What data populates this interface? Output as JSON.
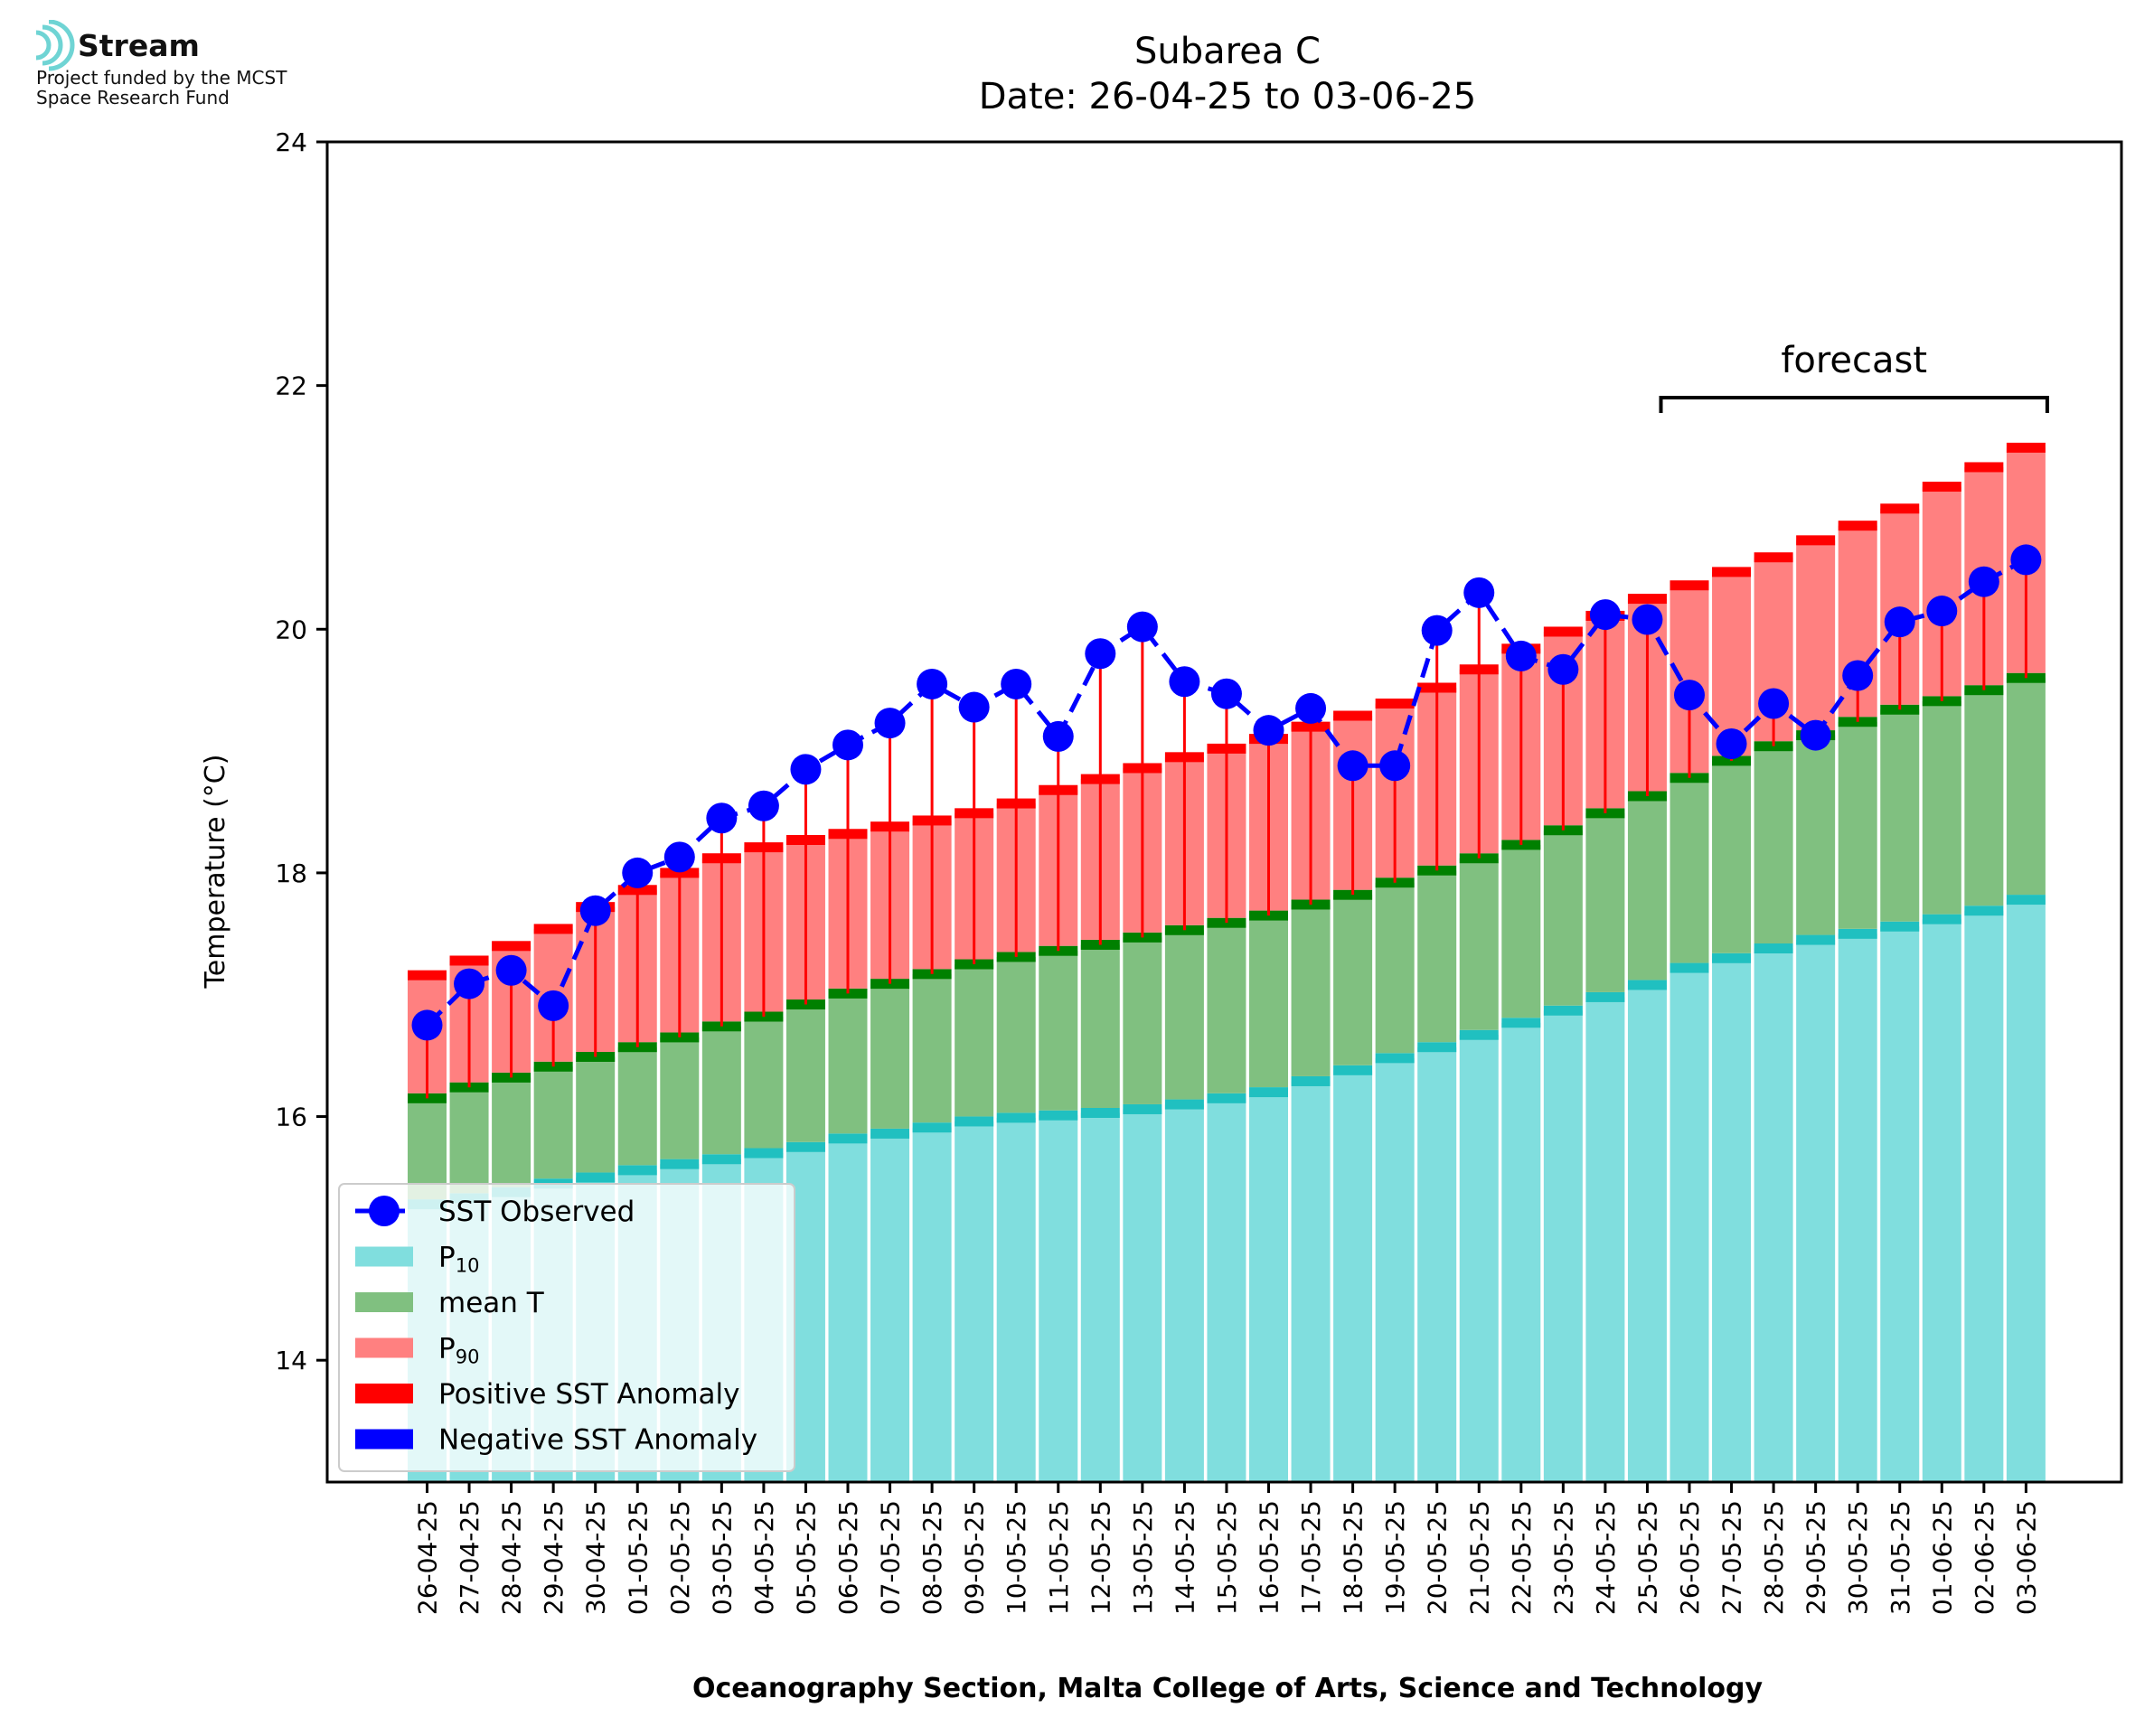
{
  "logo": {
    "name": "Stream",
    "line1": "Project funded by the MCST",
    "line2": "Space Research Fund"
  },
  "chart_data": {
    "type": "bar",
    "title": "Subarea C",
    "subtitle": "Date: 26-04-25 to 03-06-25",
    "xlabel": "Oceanography Section, Malta College of Arts, Science and Technology",
    "ylabel": "Temperature (°C)",
    "ylim": [
      13,
      24
    ],
    "yticks": [
      14,
      16,
      18,
      20,
      22,
      24
    ],
    "categories": [
      "26-04-25",
      "27-04-25",
      "28-04-25",
      "29-04-25",
      "30-04-25",
      "01-05-25",
      "02-05-25",
      "03-05-25",
      "04-05-25",
      "05-05-25",
      "06-05-25",
      "07-05-25",
      "08-05-25",
      "09-05-25",
      "10-05-25",
      "11-05-25",
      "12-05-25",
      "13-05-25",
      "14-05-25",
      "15-05-25",
      "16-05-25",
      "17-05-25",
      "18-05-25",
      "19-05-25",
      "20-05-25",
      "21-05-25",
      "22-05-25",
      "23-05-25",
      "24-05-25",
      "25-05-25",
      "26-05-25",
      "27-05-25",
      "28-05-25",
      "29-05-25",
      "30-05-25",
      "31-05-25",
      "01-06-25",
      "02-06-25",
      "03-06-25"
    ],
    "series": [
      {
        "name": "P10",
        "color": "#80dede",
        "values": [
          15.28,
          15.33,
          15.38,
          15.45,
          15.5,
          15.56,
          15.61,
          15.65,
          15.7,
          15.75,
          15.82,
          15.86,
          15.91,
          15.96,
          15.99,
          16.01,
          16.03,
          16.06,
          16.1,
          16.15,
          16.2,
          16.29,
          16.38,
          16.48,
          16.57,
          16.67,
          16.77,
          16.87,
          16.98,
          17.08,
          17.22,
          17.3,
          17.38,
          17.45,
          17.5,
          17.56,
          17.62,
          17.69,
          17.78
        ]
      },
      {
        "name": "mean T",
        "color": "#80c080",
        "values": [
          16.15,
          16.24,
          16.32,
          16.41,
          16.49,
          16.57,
          16.65,
          16.74,
          16.82,
          16.92,
          17.01,
          17.09,
          17.17,
          17.25,
          17.31,
          17.36,
          17.41,
          17.47,
          17.53,
          17.59,
          17.65,
          17.74,
          17.82,
          17.92,
          18.02,
          18.12,
          18.23,
          18.35,
          18.49,
          18.63,
          18.78,
          18.92,
          19.04,
          19.13,
          19.24,
          19.34,
          19.41,
          19.5,
          19.6
        ]
      },
      {
        "name": "P90",
        "color": "#ff8080",
        "values": [
          17.16,
          17.28,
          17.4,
          17.54,
          17.72,
          17.86,
          18.0,
          18.12,
          18.21,
          18.27,
          18.32,
          18.38,
          18.43,
          18.49,
          18.57,
          18.68,
          18.77,
          18.86,
          18.95,
          19.02,
          19.1,
          19.2,
          19.29,
          19.39,
          19.52,
          19.67,
          19.84,
          19.98,
          20.11,
          20.25,
          20.36,
          20.47,
          20.59,
          20.73,
          20.85,
          20.99,
          21.17,
          21.33,
          21.49
        ]
      },
      {
        "name": "SST Observed",
        "color": "#0000ff",
        "values": [
          16.75,
          17.09,
          17.2,
          16.91,
          17.69,
          18.0,
          18.13,
          18.45,
          18.55,
          18.85,
          19.05,
          19.23,
          19.55,
          19.36,
          19.55,
          19.12,
          19.8,
          20.02,
          19.57,
          19.47,
          19.17,
          19.35,
          18.88,
          18.88,
          19.99,
          20.3,
          19.78,
          19.67,
          20.12,
          20.08,
          19.46,
          19.06,
          19.39,
          19.13,
          19.62,
          20.06,
          20.15,
          20.39,
          20.57
        ]
      }
    ],
    "legend_items": [
      {
        "label": "SST Observed",
        "kind": "line-marker",
        "color": "#0000ff"
      },
      {
        "label": "P",
        "sub": "10",
        "kind": "patch",
        "color": "#80dede"
      },
      {
        "label": "mean T",
        "kind": "patch",
        "color": "#80c080"
      },
      {
        "label": "P",
        "sub": "90",
        "kind": "patch",
        "color": "#ff8080"
      },
      {
        "label": "Positive SST Anomaly",
        "kind": "patch",
        "color": "#ff0000"
      },
      {
        "label": "Negative SST Anomaly",
        "kind": "patch",
        "color": "#0000ff"
      }
    ],
    "legend_position": "lower-left",
    "forecast": {
      "label": "forecast",
      "from_category": "26-05-25",
      "to_category": "03-06-25"
    },
    "colors": {
      "p10_cap": "#20c0c0",
      "mean_cap": "#008000",
      "p90_cap": "#ff0000",
      "positive_anomaly": "#ff0000",
      "negative_anomaly": "#0000ff",
      "observed": "#0000ff"
    }
  }
}
